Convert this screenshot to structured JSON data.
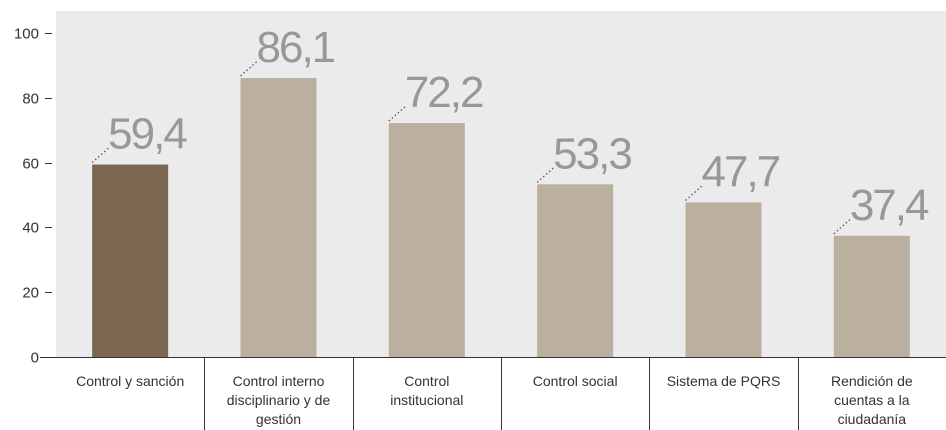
{
  "chart_data": {
    "type": "bar",
    "categories": [
      [
        "Control y sanción"
      ],
      [
        "Control interno",
        "disciplinario y de",
        "gestión"
      ],
      [
        "Control",
        "institucional"
      ],
      [
        "Control social"
      ],
      [
        "Sistema de PQRS"
      ],
      [
        "Rendición de",
        "cuentas a la",
        "ciudadanía"
      ]
    ],
    "values": [
      59.4,
      86.1,
      72.2,
      53.3,
      47.7,
      37.4
    ],
    "value_labels": [
      "59,4",
      "86,1",
      "72,2",
      "53,3",
      "47,7",
      "37,4"
    ],
    "y_ticks": [
      0,
      20,
      40,
      60,
      80,
      100
    ],
    "ylim": [
      0,
      100
    ],
    "title": "",
    "xlabel": "",
    "ylabel": "",
    "grid": false,
    "legend": "none",
    "colors": {
      "highlight_bar": "#7b6751",
      "bar": "#bbaf9f",
      "plot_background": "#ebebeb",
      "data_label": "#9a9896",
      "leader_line": "#555555",
      "axis": "#333333"
    }
  }
}
